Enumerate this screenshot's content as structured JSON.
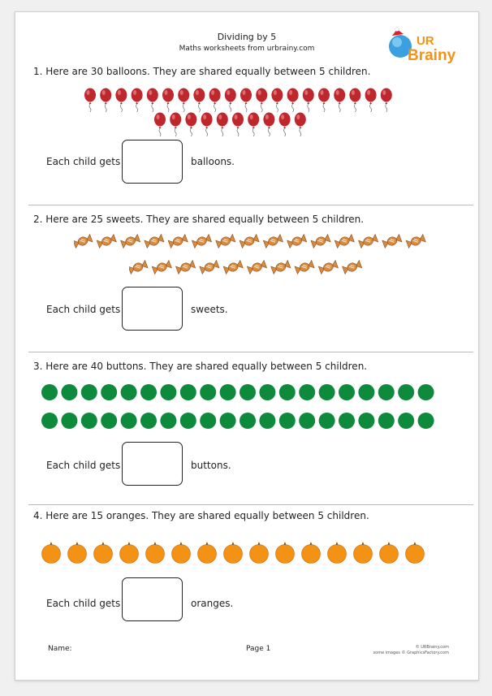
{
  "header": {
    "title": "Dividing by 5",
    "subtitle": "Maths worksheets from urbrainy.com",
    "logo_ur": "UR",
    "logo_brainy": "Brainy"
  },
  "questions": [
    {
      "text": "1. Here are 30 balloons. They are shared equally between 5 children.",
      "count": 30,
      "item": "balloon",
      "prefix": "Each child gets",
      "suffix": "balloons."
    },
    {
      "text": "2. Here are 25 sweets. They are shared equally between 5 children.",
      "count": 25,
      "item": "sweet",
      "prefix": "Each child gets",
      "suffix": "sweets."
    },
    {
      "text": "3. Here are 40 buttons. They are shared equally between 5 children.",
      "count": 40,
      "item": "button",
      "prefix": "Each child gets",
      "suffix": "buttons."
    },
    {
      "text": "4. Here are 15 oranges. They are shared equally between 5 children.",
      "count": 15,
      "item": "orange",
      "prefix": "Each child gets",
      "suffix": "oranges."
    }
  ],
  "footer": {
    "name_label": "Name:",
    "page_label": "Page 1",
    "credit_line1": "© URBrainy.com",
    "credit_line2": "some images © GraphicsFactory.com"
  },
  "colors": {
    "balloon": "#c0272d",
    "sweet": "#d98a3c",
    "button": "#0e8a3c",
    "orange": "#f39214",
    "logo_orange": "#f39214",
    "logo_blue": "#2c8fd6"
  }
}
